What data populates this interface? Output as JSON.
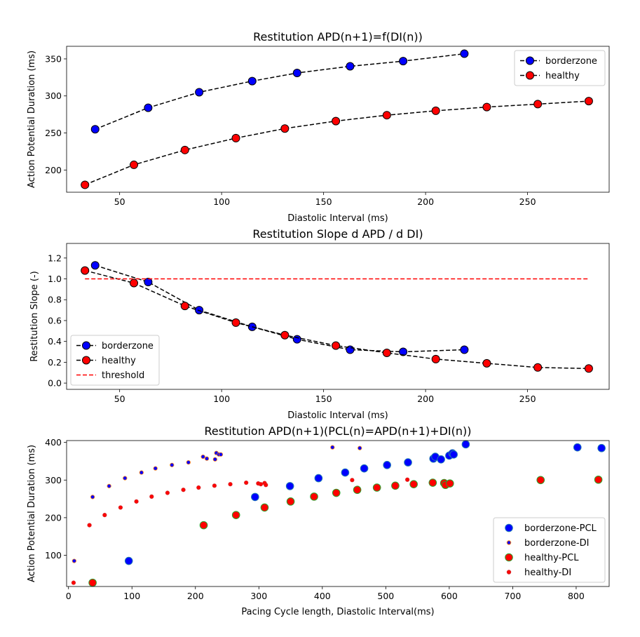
{
  "chart_data": [
    {
      "type": "line",
      "title": "Restitution APD(n+1)=f(DI(n))",
      "xlabel": "Diastolic Interval (ms)",
      "ylabel": "Action Potential Duration (ms)",
      "xlim": [
        24,
        290
      ],
      "ylim": [
        170,
        367
      ],
      "xticks": [
        50,
        100,
        150,
        200,
        250
      ],
      "yticks": [
        200,
        250,
        300,
        350
      ],
      "legend_position": "top-right",
      "series": [
        {
          "name": "borderzone",
          "color": "#0000ff",
          "line": "#000000",
          "x": [
            38,
            64,
            89,
            115,
            137,
            163,
            189,
            219
          ],
          "y": [
            255,
            284,
            305,
            320,
            331,
            340,
            347,
            357
          ]
        },
        {
          "name": "healthy",
          "color": "#ff0000",
          "line": "#000000",
          "x": [
            33,
            57,
            82,
            107,
            131,
            156,
            181,
            205,
            230,
            255,
            280
          ],
          "y": [
            180,
            207,
            227,
            243,
            256,
            266,
            274,
            280,
            285,
            289,
            293
          ]
        }
      ]
    },
    {
      "type": "line",
      "title": "Restitution Slope d APD / d DI)",
      "xlabel": "Diastolic Interval (ms)",
      "ylabel": "Restitution Slope (-)",
      "xlim": [
        24,
        290
      ],
      "ylim": [
        -0.06,
        1.34
      ],
      "xticks": [
        50,
        100,
        150,
        200,
        250
      ],
      "yticks": [
        0.0,
        0.2,
        0.4,
        0.6,
        0.8,
        1.0,
        1.2
      ],
      "legend_position": "bottom-left",
      "series": [
        {
          "name": "borderzone",
          "color": "#0000ff",
          "line": "#000000",
          "x": [
            38,
            64,
            89,
            115,
            137,
            163,
            189,
            219
          ],
          "y": [
            1.13,
            0.97,
            0.7,
            0.54,
            0.42,
            0.32,
            0.3,
            0.32
          ]
        },
        {
          "name": "healthy",
          "color": "#ff0000",
          "line": "#000000",
          "x": [
            33,
            57,
            82,
            107,
            131,
            156,
            181,
            205,
            230,
            255,
            280
          ],
          "y": [
            1.08,
            0.96,
            0.74,
            0.58,
            0.46,
            0.36,
            0.29,
            0.23,
            0.19,
            0.15,
            0.14
          ]
        },
        {
          "name": "threshold",
          "color": "#ff0000",
          "dashed": true,
          "x": [
            33,
            280
          ],
          "y": [
            1.0,
            1.0
          ]
        }
      ]
    },
    {
      "type": "scatter",
      "title": "Restitution APD(n+1)(PCL(n)=APD(n+1)+DI(n))",
      "xlabel": "Pacing Cycle length, Diastolic Interval(ms)",
      "ylabel": "Action Potential Duration (ms)",
      "xlim": [
        -3,
        852
      ],
      "ylim": [
        17,
        405
      ],
      "xticks": [
        0,
        100,
        200,
        300,
        400,
        500,
        600,
        700,
        800
      ],
      "yticks": [
        100,
        200,
        300,
        400
      ],
      "legend_position": "bottom-right",
      "series": [
        {
          "name": "borderzone-PCL",
          "marker": "big",
          "fill": "#0000ff",
          "edge": "#1f77b4",
          "x": [
            95,
            294,
            349,
            394,
            436,
            466,
            502,
            535,
            575,
            578,
            587,
            600,
            605,
            607,
            626,
            802,
            840
          ],
          "y": [
            85,
            255,
            284,
            305,
            320,
            331,
            340,
            347,
            357,
            362,
            355,
            365,
            371,
            368,
            395,
            387,
            385
          ]
        },
        {
          "name": "borderzone-DI",
          "marker": "small",
          "fill": "#0000ff",
          "edge": "#ff7f0e",
          "x": [
            9,
            38,
            64,
            89,
            115,
            137,
            163,
            189,
            212,
            218,
            231,
            233,
            237,
            240,
            416,
            459
          ],
          "y": [
            85,
            255,
            284,
            305,
            320,
            331,
            340,
            347,
            362,
            357,
            355,
            372,
            368,
            368,
            387,
            385
          ]
        },
        {
          "name": "healthy-PCL",
          "marker": "big",
          "fill": "#ff0000",
          "edge": "#2ca02c",
          "x": [
            38,
            213,
            264,
            309,
            350,
            387,
            422,
            455,
            486,
            515,
            544,
            574,
            592,
            594,
            601,
            744,
            835
          ],
          "y": [
            27,
            180,
            207,
            227,
            243,
            256,
            266,
            274,
            280,
            285,
            289,
            293,
            292,
            287,
            291,
            300,
            301
          ]
        },
        {
          "name": "healthy-DI",
          "marker": "small",
          "fill": "#ff0000",
          "edge": "#d62728",
          "x": [
            8,
            33,
            57,
            82,
            107,
            131,
            156,
            181,
            205,
            230,
            255,
            280,
            299,
            303,
            309,
            311,
            447,
            534
          ],
          "y": [
            27,
            180,
            207,
            227,
            243,
            256,
            266,
            274,
            280,
            285,
            289,
            293,
            291,
            289,
            292,
            287,
            300,
            301
          ]
        }
      ]
    }
  ]
}
